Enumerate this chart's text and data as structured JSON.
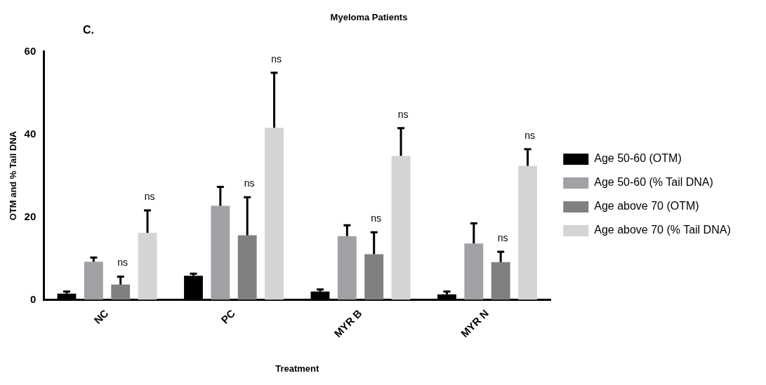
{
  "chart_data": {
    "type": "bar",
    "title": "Myeloma Patients",
    "xlabel": "Treatment",
    "ylabel": "OTM and % Tail DNA",
    "categories": [
      "NC",
      "PC",
      "MYR B",
      "MYR N"
    ],
    "series": [
      {
        "name": "Age 50-60 (OTM)",
        "color": "#000000",
        "values": [
          1.5,
          5.8,
          2.0,
          1.3
        ],
        "errors": [
          [
            1.5,
            2.0
          ],
          [
            5.8,
            6.3
          ],
          [
            2.0,
            2.5
          ],
          [
            1.3,
            2.0
          ]
        ]
      },
      {
        "name": "Age 50-60 (% Tail DNA)",
        "color": "#a0a0a5",
        "values": [
          9.2,
          22.7,
          15.4,
          13.6
        ],
        "errors": [
          [
            9.2,
            10.2
          ],
          [
            22.7,
            27.3
          ],
          [
            15.4,
            18.0
          ],
          [
            13.6,
            18.5
          ]
        ]
      },
      {
        "name": "Age above 70 (OTM)",
        "color": "#808080",
        "values": [
          3.7,
          15.6,
          11.0,
          9.1
        ],
        "errors": [
          [
            3.7,
            5.6
          ],
          [
            15.6,
            24.8
          ],
          [
            11.0,
            16.3
          ],
          [
            9.1,
            11.6
          ]
        ]
      },
      {
        "name": "Age above 70 (% Tail DNA)",
        "color": "#d4d4d4",
        "values": [
          16.2,
          41.6,
          34.8,
          32.4
        ],
        "errors": [
          [
            16.2,
            21.6
          ],
          [
            41.6,
            54.9
          ],
          [
            34.8,
            41.5
          ],
          [
            32.4,
            36.4
          ]
        ]
      }
    ],
    "ylim": [
      0,
      60
    ],
    "yticks": [
      0,
      20,
      40,
      60
    ],
    "grid": false,
    "legend": "right",
    "annotations": [
      "C.",
      "ns",
      "ns",
      "ns",
      "ns",
      "ns",
      "ns",
      "ns",
      "ns"
    ]
  }
}
